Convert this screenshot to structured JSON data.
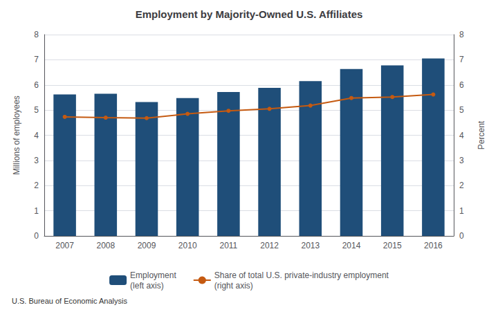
{
  "chart_data": {
    "type": "bar",
    "title": "Employment by Majority-Owned U.S. Affiliates",
    "categories": [
      "2007",
      "2008",
      "2009",
      "2010",
      "2011",
      "2012",
      "2013",
      "2014",
      "2015",
      "2016"
    ],
    "series": [
      {
        "name": "Employment\n(left axis)",
        "type": "bar",
        "color": "#1f4e79",
        "values": [
          5.62,
          5.65,
          5.32,
          5.48,
          5.72,
          5.88,
          6.15,
          6.63,
          6.78,
          7.05
        ]
      },
      {
        "name": "Share of total U.S. private-industry employment\n(right axis)",
        "type": "line",
        "axis": "y2",
        "color": "#c55a11",
        "marker": "circle",
        "values": [
          4.73,
          4.7,
          4.68,
          4.85,
          4.97,
          5.05,
          5.18,
          5.48,
          5.52,
          5.62
        ]
      }
    ],
    "ylabel": "Millions of employees",
    "y2label": "Percent",
    "ylim": [
      0,
      8
    ],
    "yticks": [
      0,
      1,
      2,
      3,
      4,
      5,
      6,
      7,
      8
    ],
    "y2lim": [
      0,
      8
    ],
    "y2ticks": [
      0,
      1,
      2,
      3,
      4,
      5,
      6,
      7,
      8
    ],
    "grid": true,
    "legend": "bottom",
    "annotations": [
      "U.S. Bureau of Economic Analysis"
    ]
  }
}
